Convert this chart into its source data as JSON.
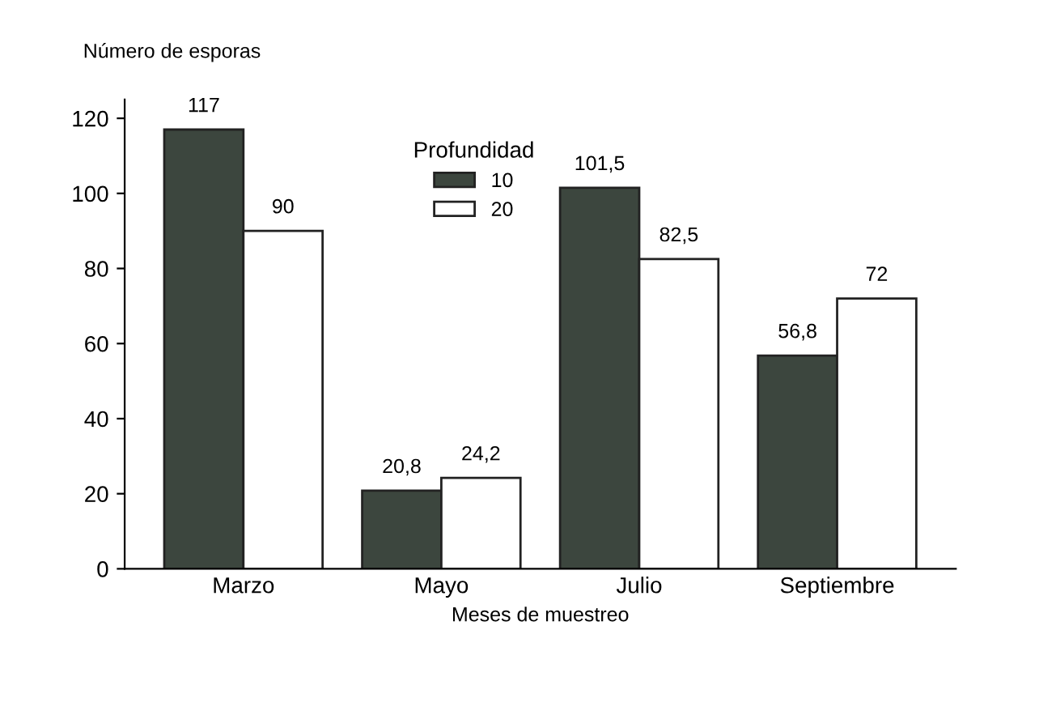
{
  "chart_data": {
    "type": "bar",
    "ylabel": "Número de esporas",
    "xlabel": "Meses de muestreo",
    "legend_title": "Profundidad",
    "categories": [
      "Marzo",
      "Mayo",
      "Julio",
      "Septiembre"
    ],
    "series": [
      {
        "name": "10",
        "color": "#3c463e",
        "values": [
          117,
          20.8,
          101.5,
          56.8
        ],
        "value_labels": [
          "117",
          "20,8",
          "101,5",
          "56,8"
        ]
      },
      {
        "name": "20",
        "color": "#ffffff",
        "values": [
          90,
          24.2,
          82.5,
          72
        ],
        "value_labels": [
          "90",
          "24,2",
          "82,5",
          "72"
        ]
      }
    ],
    "ylim": [
      0,
      125
    ],
    "yticks": [
      0,
      20,
      40,
      60,
      80,
      100,
      120
    ],
    "grid": false,
    "legend": "top"
  }
}
